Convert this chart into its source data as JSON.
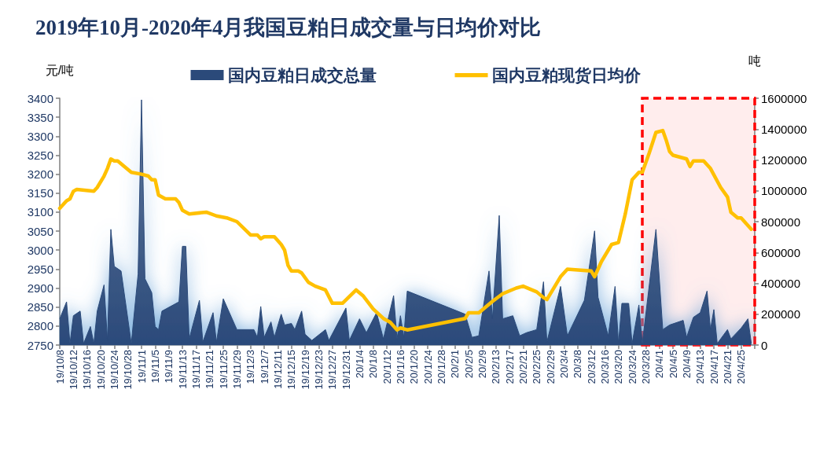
{
  "chart_data": {
    "type": "line",
    "title": "2019年10月-2020年4月我国豆粕日成交量与日均价对比",
    "ylabel": "元/吨",
    "y2label": "吨",
    "xlim": [
      "2019-10-08",
      "2020-04-29"
    ],
    "xticks": [
      {
        "value": "2019-10-08",
        "label": "19/10/8"
      },
      {
        "value": "2019-10-12",
        "label": "19/10/12"
      },
      {
        "value": "2019-10-16",
        "label": "19/10/16"
      },
      {
        "value": "2019-10-20",
        "label": "19/10/20"
      },
      {
        "value": "2019-10-24",
        "label": "19/10/24"
      },
      {
        "value": "2019-10-28",
        "label": "19/10/28"
      },
      {
        "value": "2019-11-01",
        "label": "19/11/1"
      },
      {
        "value": "2019-11-05",
        "label": "19/11/5"
      },
      {
        "value": "2019-11-09",
        "label": "19/11/9"
      },
      {
        "value": "2019-11-13",
        "label": "19/11/13"
      },
      {
        "value": "2019-11-17",
        "label": "19/11/17"
      },
      {
        "value": "2019-11-21",
        "label": "19/11/21"
      },
      {
        "value": "2019-11-25",
        "label": "19/11/25"
      },
      {
        "value": "2019-11-29",
        "label": "19/11/29"
      },
      {
        "value": "2019-12-03",
        "label": "19/12/3"
      },
      {
        "value": "2019-12-07",
        "label": "19/12/7"
      },
      {
        "value": "2019-12-11",
        "label": "19/12/11"
      },
      {
        "value": "2019-12-15",
        "label": "19/12/15"
      },
      {
        "value": "2019-12-19",
        "label": "19/12/19"
      },
      {
        "value": "2019-12-23",
        "label": "19/12/23"
      },
      {
        "value": "2019-12-27",
        "label": "19/12/27"
      },
      {
        "value": "2019-12-31",
        "label": "19/12/31"
      },
      {
        "value": "2020-01-04",
        "label": "20/1/4"
      },
      {
        "value": "2020-01-08",
        "label": "20/1/8"
      },
      {
        "value": "2020-01-12",
        "label": "20/1/12"
      },
      {
        "value": "2020-01-16",
        "label": "20/1/16"
      },
      {
        "value": "2020-01-20",
        "label": "20/1/20"
      },
      {
        "value": "2020-01-24",
        "label": "20/1/24"
      },
      {
        "value": "2020-01-28",
        "label": "20/1/28"
      },
      {
        "value": "2020-02-01",
        "label": "20/2/1"
      },
      {
        "value": "2020-02-05",
        "label": "20/2/5"
      },
      {
        "value": "2020-02-09",
        "label": "20/2/9"
      },
      {
        "value": "2020-02-13",
        "label": "20/2/13"
      },
      {
        "value": "2020-02-17",
        "label": "20/2/17"
      },
      {
        "value": "2020-02-21",
        "label": "20/2/21"
      },
      {
        "value": "2020-02-25",
        "label": "20/2/25"
      },
      {
        "value": "2020-02-29",
        "label": "20/2/29"
      },
      {
        "value": "2020-03-04",
        "label": "20/3/4"
      },
      {
        "value": "2020-03-08",
        "label": "20/3/8"
      },
      {
        "value": "2020-03-12",
        "label": "20/3/12"
      },
      {
        "value": "2020-03-16",
        "label": "20/3/16"
      },
      {
        "value": "2020-03-20",
        "label": "20/3/20"
      },
      {
        "value": "2020-03-24",
        "label": "20/3/24"
      },
      {
        "value": "2020-03-28",
        "label": "20/3/28"
      },
      {
        "value": "2020-04-01",
        "label": "20/4/1"
      },
      {
        "value": "2020-04-05",
        "label": "20/4/5"
      },
      {
        "value": "2020-04-09",
        "label": "20/4/9"
      },
      {
        "value": "2020-04-13",
        "label": "20/4/13"
      },
      {
        "value": "2020-04-17",
        "label": "20/4/17"
      },
      {
        "value": "2020-04-21",
        "label": "20/4/21"
      },
      {
        "value": "2020-04-25",
        "label": "20/4/25"
      },
      {
        "value": "2020-04-29",
        "label": null
      }
    ],
    "ylim": [
      2750,
      3400
    ],
    "yticks": [
      2750,
      2800,
      2850,
      2900,
      2950,
      3000,
      3050,
      3100,
      3150,
      3200,
      3250,
      3300,
      3350,
      3400
    ],
    "y2lim": [
      0,
      1600000
    ],
    "y2ticks": [
      0,
      200000,
      400000,
      600000,
      800000,
      1000000,
      1200000,
      1400000,
      1600000
    ],
    "series": [
      {
        "name": "国内豆粕日成交总量",
        "type": "area",
        "axis": "y2",
        "color": "#2b4a7a",
        "x": [
          "2019-10-08",
          "2019-10-10",
          "2019-10-11",
          "2019-10-12",
          "2019-10-14",
          "2019-10-15",
          "2019-10-17",
          "2019-10-18",
          "2019-10-19",
          "2019-10-21",
          "2019-10-22",
          "2019-10-23",
          "2019-10-24",
          "2019-10-26",
          "2019-10-29",
          "2019-10-31",
          "2019-11-01",
          "2019-11-02",
          "2019-11-04",
          "2019-11-05",
          "2019-11-06",
          "2019-11-07",
          "2019-11-12",
          "2019-11-13",
          "2019-11-14",
          "2019-11-15",
          "2019-11-18",
          "2019-11-19",
          "2019-11-22",
          "2019-11-23",
          "2019-11-25",
          "2019-11-29",
          "2019-12-04",
          "2019-12-05",
          "2019-12-06",
          "2019-12-07",
          "2019-12-09",
          "2019-12-10",
          "2019-12-12",
          "2019-12-13",
          "2019-12-15",
          "2019-12-16",
          "2019-12-18",
          "2019-12-19",
          "2019-12-21",
          "2019-12-25",
          "2019-12-26",
          "2019-12-31",
          "2020-01-01",
          "2020-01-04",
          "2020-01-06",
          "2020-01-09",
          "2020-01-11",
          "2020-01-14",
          "2020-01-15",
          "2020-01-16",
          "2020-01-17",
          "2020-01-18",
          "2020-02-04",
          "2020-02-06",
          "2020-02-08",
          "2020-02-11",
          "2020-02-12",
          "2020-02-14",
          "2020-02-15",
          "2020-02-18",
          "2020-02-20",
          "2020-02-22",
          "2020-02-25",
          "2020-02-27",
          "2020-02-28",
          "2020-03-03",
          "2020-03-05",
          "2020-03-10",
          "2020-03-13",
          "2020-03-14",
          "2020-03-17",
          "2020-03-19",
          "2020-03-20",
          "2020-03-21",
          "2020-03-23",
          "2020-03-24",
          "2020-03-26",
          "2020-03-27",
          "2020-03-31",
          "2020-04-02",
          "2020-04-04",
          "2020-04-08",
          "2020-04-09",
          "2020-04-11",
          "2020-04-13",
          "2020-04-15",
          "2020-04-16",
          "2020-04-17",
          "2020-04-18",
          "2020-04-21",
          "2020-04-22",
          "2020-04-25",
          "2020-04-27",
          "2020-04-28"
        ],
        "values": [
          170000,
          280000,
          10000,
          190000,
          220000,
          10000,
          120000,
          10000,
          220000,
          390000,
          30000,
          750000,
          510000,
          480000,
          10000,
          460000,
          1590000,
          430000,
          340000,
          120000,
          100000,
          220000,
          280000,
          640000,
          640000,
          40000,
          290000,
          20000,
          210000,
          20000,
          300000,
          100000,
          100000,
          50000,
          250000,
          50000,
          150000,
          50000,
          200000,
          130000,
          140000,
          100000,
          220000,
          70000,
          30000,
          100000,
          30000,
          240000,
          30000,
          170000,
          80000,
          210000,
          40000,
          320000,
          40000,
          190000,
          50000,
          350000,
          200000,
          50000,
          60000,
          480000,
          170000,
          840000,
          170000,
          190000,
          60000,
          80000,
          100000,
          410000,
          20000,
          380000,
          60000,
          290000,
          740000,
          310000,
          60000,
          380000,
          10000,
          270000,
          270000,
          10000,
          260000,
          10000,
          750000,
          100000,
          130000,
          160000,
          50000,
          180000,
          210000,
          350000,
          100000,
          230000,
          10000,
          100000,
          40000,
          110000,
          170000,
          10000
        ]
      },
      {
        "name": "国内豆粕现货日均价",
        "type": "line",
        "color": "#ffc000",
        "x": [
          "2019-10-08",
          "2019-10-10",
          "2019-10-11",
          "2019-10-12",
          "2019-10-13",
          "2019-10-18",
          "2019-10-19",
          "2019-10-21",
          "2019-10-22",
          "2019-10-23",
          "2019-10-24",
          "2019-10-25",
          "2019-10-27",
          "2019-10-29",
          "2019-11-01",
          "2019-11-03",
          "2019-11-04",
          "2019-11-05",
          "2019-11-06",
          "2019-11-08",
          "2019-11-11",
          "2019-11-12",
          "2019-11-13",
          "2019-11-15",
          "2019-11-20",
          "2019-11-23",
          "2019-11-26",
          "2019-11-29",
          "2019-12-03",
          "2019-12-05",
          "2019-12-06",
          "2019-12-07",
          "2019-12-10",
          "2019-12-12",
          "2019-12-13",
          "2019-12-14",
          "2019-12-15",
          "2019-12-17",
          "2019-12-18",
          "2019-12-20",
          "2019-12-22",
          "2019-12-25",
          "2019-12-27",
          "2019-12-30",
          "2020-01-03",
          "2020-01-05",
          "2020-01-08",
          "2020-01-11",
          "2020-01-13",
          "2020-01-15",
          "2020-01-16",
          "2020-01-18",
          "2020-02-04",
          "2020-02-05",
          "2020-02-08",
          "2020-02-12",
          "2020-02-15",
          "2020-02-19",
          "2020-02-21",
          "2020-02-25",
          "2020-02-27",
          "2020-02-28",
          "2020-03-03",
          "2020-03-05",
          "2020-03-12",
          "2020-03-13",
          "2020-03-15",
          "2020-03-18",
          "2020-03-20",
          "2020-03-22",
          "2020-03-24",
          "2020-03-26",
          "2020-03-27",
          "2020-03-29",
          "2020-03-31",
          "2020-04-02",
          "2020-04-03",
          "2020-04-04",
          "2020-04-05",
          "2020-04-09",
          "2020-04-10",
          "2020-04-11",
          "2020-04-14",
          "2020-04-16",
          "2020-04-19",
          "2020-04-21",
          "2020-04-22",
          "2020-04-24",
          "2020-04-25",
          "2020-04-28"
        ],
        "values": [
          3110,
          3130,
          3135,
          3155,
          3160,
          3155,
          3165,
          3195,
          3215,
          3240,
          3235,
          3235,
          3220,
          3205,
          3200,
          3195,
          3185,
          3185,
          3145,
          3135,
          3135,
          3125,
          3105,
          3095,
          3100,
          3090,
          3085,
          3075,
          3040,
          3040,
          3030,
          3035,
          3035,
          3015,
          3000,
          2960,
          2945,
          2945,
          2940,
          2915,
          2905,
          2895,
          2860,
          2860,
          2895,
          2880,
          2845,
          2820,
          2810,
          2790,
          2795,
          2790,
          2820,
          2835,
          2835,
          2865,
          2885,
          2900,
          2905,
          2890,
          2875,
          2870,
          2930,
          2950,
          2945,
          2930,
          2970,
          3015,
          3020,
          3095,
          3185,
          3205,
          3205,
          3255,
          3310,
          3315,
          3290,
          3260,
          3250,
          3240,
          3220,
          3235,
          3235,
          3215,
          3165,
          3140,
          3100,
          3085,
          3085,
          3055
        ]
      }
    ],
    "bands": [
      {
        "axis": "x",
        "from": "2020-03-27",
        "to": "2020-04-29",
        "color": "#ff0000"
      }
    ],
    "legend": "top",
    "grid": false,
    "marker": "none"
  }
}
